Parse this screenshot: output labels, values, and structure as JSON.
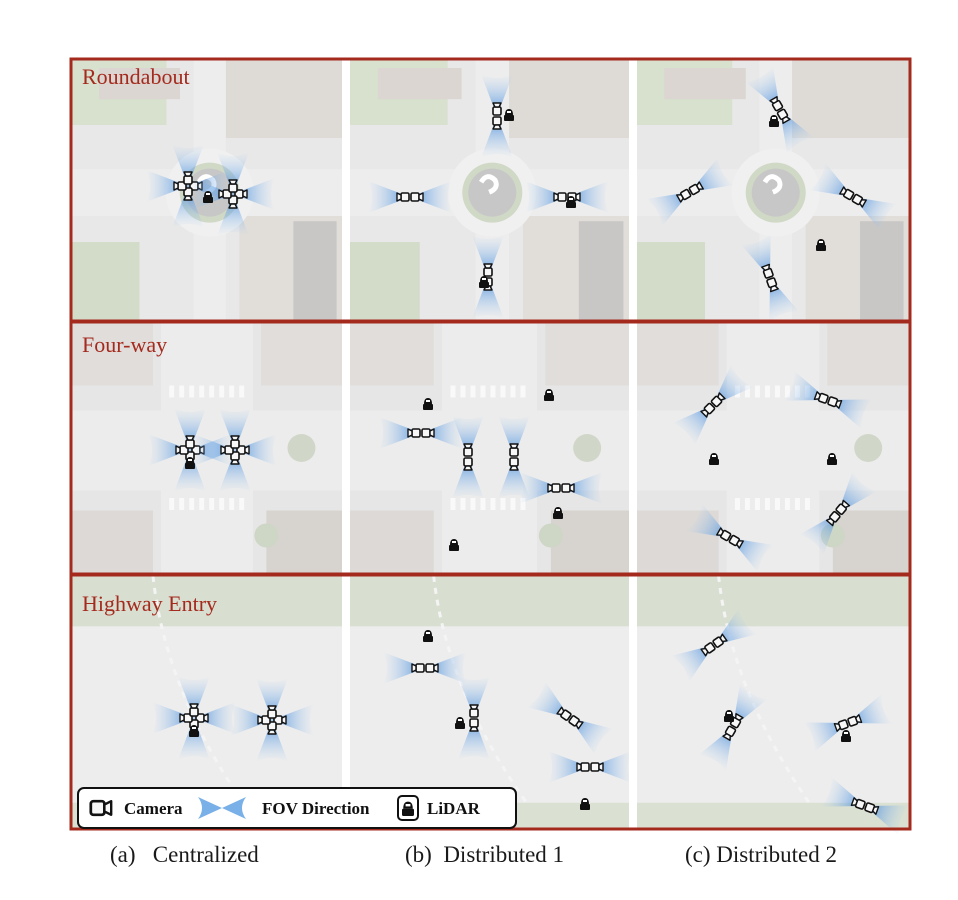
{
  "rows": [
    {
      "label": "Roundabout"
    },
    {
      "label": "Four-way"
    },
    {
      "label": "Highway Entry"
    }
  ],
  "columns": [
    {
      "caption": "(a)   Centralized"
    },
    {
      "caption": "(b)  Distributed 1"
    },
    {
      "caption": "(c) Distributed 2"
    }
  ],
  "legend": {
    "camera": "Camera",
    "fov": "FOV Direction",
    "lidar": "LiDAR"
  },
  "colors": {
    "frame": "#a52a1e",
    "row_label": "#a52a1e",
    "fov": "#4a90d9",
    "road": "#d8d8d8",
    "grass": "#b9c8a8",
    "building": "#c9c4be"
  }
}
